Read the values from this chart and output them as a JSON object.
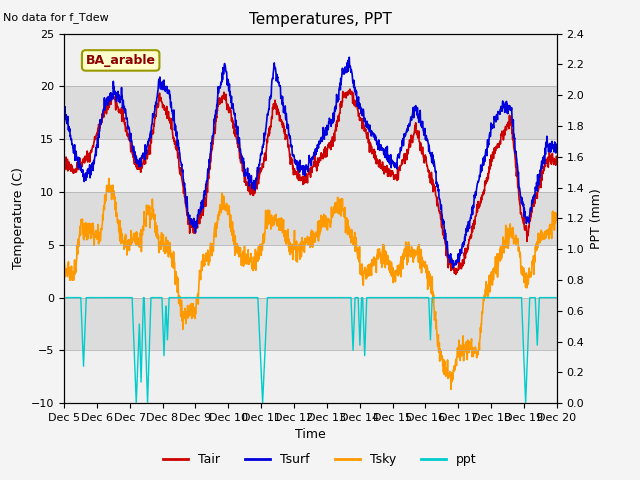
{
  "title": "Temperatures, PPT",
  "subtitle": "No data for f_Tdew",
  "station_label": "BA_arable",
  "xlabel": "Time",
  "ylabel_left": "Temperature (C)",
  "ylabel_right": "PPT (mm)",
  "ylim_left": [
    -10,
    25
  ],
  "ylim_right": [
    0.0,
    2.4
  ],
  "yticks_left": [
    -10,
    -5,
    0,
    5,
    10,
    15,
    20,
    25
  ],
  "yticks_right": [
    0.0,
    0.2,
    0.4,
    0.6,
    0.8,
    1.0,
    1.2,
    1.4,
    1.6,
    1.8,
    2.0,
    2.2,
    2.4
  ],
  "x_tick_labels": [
    "Dec 5",
    "Dec 6",
    "Dec 7",
    "Dec 8",
    "Dec 9",
    "Dec 10",
    "Dec 11",
    "Dec 12",
    "Dec 13",
    "Dec 14",
    "Dec 15",
    "Dec 16",
    "Dec 17",
    "Dec 18",
    "Dec 19",
    "Dec 20"
  ],
  "colors": {
    "Tair": "#cc0000",
    "Tsurf": "#0000dd",
    "Tsky": "#ff9900",
    "ppt": "#00cccc",
    "station_box_face": "#ffffcc",
    "station_box_edge": "#999900",
    "band_light": "#f0f0f0",
    "band_dark": "#dcdcdc"
  },
  "legend_entries": [
    "Tair",
    "Tsurf",
    "Tsky",
    "ppt"
  ]
}
